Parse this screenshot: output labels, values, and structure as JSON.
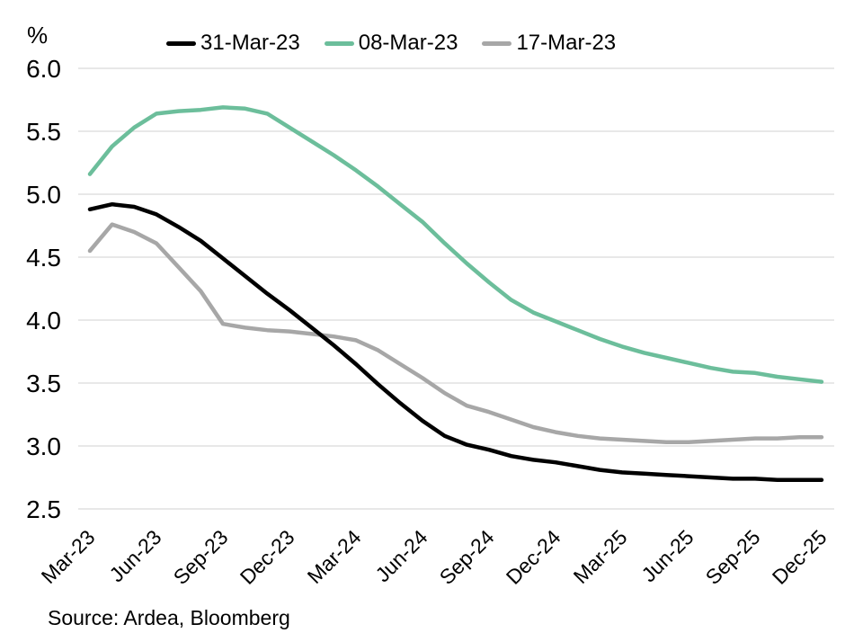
{
  "chart_data": {
    "type": "line",
    "title": "",
    "ylabel": "%",
    "xlabel": "",
    "ylim": [
      2.5,
      6.0
    ],
    "ytick_step": 0.5,
    "yticks": [
      "6.0",
      "5.5",
      "5.0",
      "4.5",
      "4.0",
      "3.5",
      "3.0",
      "2.5"
    ],
    "grid": "horizontal",
    "legend_position": "top",
    "source": "Source: Ardea, Bloomberg",
    "categories": [
      "Mar-23",
      "Apr-23",
      "May-23",
      "Jun-23",
      "Jul-23",
      "Aug-23",
      "Sep-23",
      "Oct-23",
      "Nov-23",
      "Dec-23",
      "Jan-24",
      "Feb-24",
      "Mar-24",
      "Apr-24",
      "May-24",
      "Jun-24",
      "Jul-24",
      "Aug-24",
      "Sep-24",
      "Oct-24",
      "Nov-24",
      "Dec-24",
      "Jan-25",
      "Feb-25",
      "Mar-25",
      "Apr-25",
      "May-25",
      "Jun-25",
      "Jul-25",
      "Aug-25",
      "Sep-25",
      "Oct-25",
      "Nov-25",
      "Dec-25"
    ],
    "xtick_labels": [
      "Mar-23",
      "Jun-23",
      "Sep-23",
      "Dec-23",
      "Mar-24",
      "Jun-24",
      "Sep-24",
      "Dec-24",
      "Mar-25",
      "Jun-25",
      "Sep-25",
      "Dec-25"
    ],
    "xtick_every": 3,
    "series": [
      {
        "name": "31-Mar-23",
        "color": "#000000",
        "values": [
          4.88,
          4.92,
          4.9,
          4.84,
          4.74,
          4.63,
          4.49,
          4.35,
          4.21,
          4.08,
          3.94,
          3.8,
          3.65,
          3.49,
          3.34,
          3.2,
          3.08,
          3.01,
          2.97,
          2.92,
          2.89,
          2.87,
          2.84,
          2.81,
          2.79,
          2.78,
          2.77,
          2.76,
          2.75,
          2.74,
          2.74,
          2.73,
          2.73,
          2.73
        ]
      },
      {
        "name": "08-Mar-23",
        "color": "#6cbe9b",
        "values": [
          5.16,
          5.38,
          5.53,
          5.64,
          5.66,
          5.67,
          5.69,
          5.68,
          5.64,
          5.53,
          5.42,
          5.31,
          5.19,
          5.06,
          4.92,
          4.78,
          4.61,
          4.45,
          4.3,
          4.16,
          4.06,
          3.99,
          3.92,
          3.85,
          3.79,
          3.74,
          3.7,
          3.66,
          3.62,
          3.59,
          3.58,
          3.55,
          3.53,
          3.51
        ]
      },
      {
        "name": "17-Mar-23",
        "color": "#a7a7a7",
        "values": [
          4.55,
          4.76,
          4.7,
          4.61,
          4.42,
          4.23,
          3.97,
          3.94,
          3.92,
          3.91,
          3.89,
          3.87,
          3.84,
          3.76,
          3.65,
          3.54,
          3.42,
          3.32,
          3.27,
          3.21,
          3.15,
          3.11,
          3.08,
          3.06,
          3.05,
          3.04,
          3.03,
          3.03,
          3.04,
          3.05,
          3.06,
          3.06,
          3.07,
          3.07
        ]
      }
    ]
  },
  "colors": {
    "gridline": "#d9d9d9",
    "text": "#000000"
  }
}
